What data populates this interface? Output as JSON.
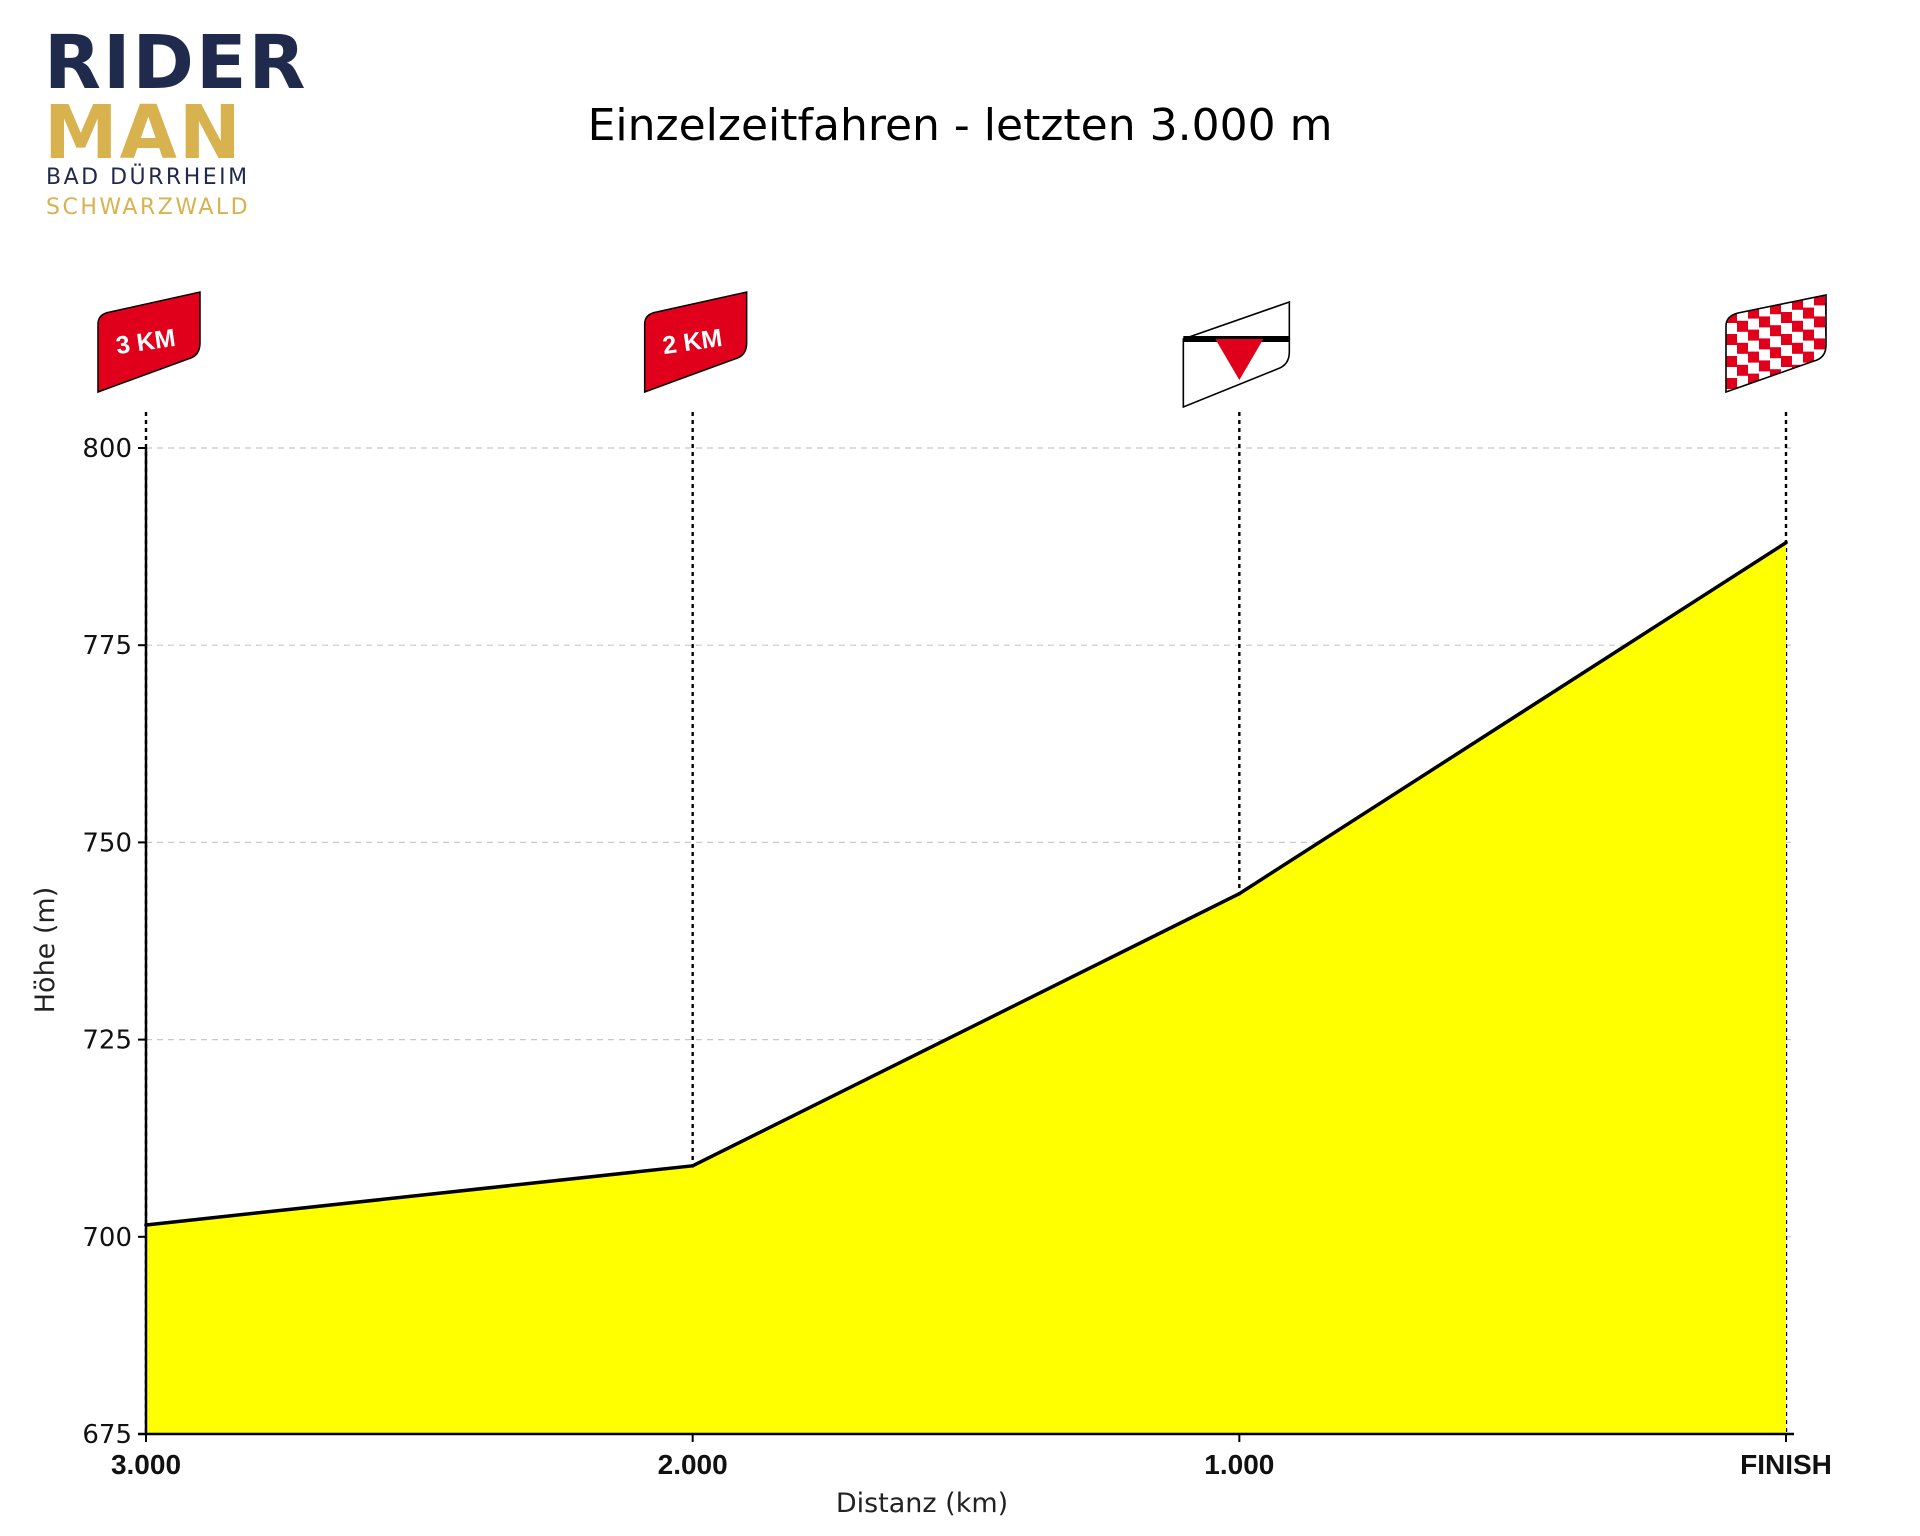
{
  "logo": {
    "line1": "RIDER",
    "line2": "MAN",
    "city": "BAD DÜRRHEIM",
    "region": "SCHWARZWALD",
    "colors": {
      "navy": "#1f2a4d",
      "gold": "#d8b24e"
    }
  },
  "chart_data": {
    "type": "area",
    "title": "Einzelzeitfahren - letzten 3.000 m",
    "xlabel": "Distanz (km)",
    "ylabel": "Höhe (m)",
    "x": [
      3.0,
      2.0,
      1.0,
      0.0
    ],
    "y": [
      701.5,
      709,
      743.5,
      788
    ],
    "xlim": [
      3.0,
      0.0
    ],
    "ylim": [
      675,
      800
    ],
    "y_ticks": [
      "675",
      "700",
      "725",
      "750",
      "775",
      "800"
    ],
    "x_ticks": [
      {
        "value": 3.0,
        "label": "3.000"
      },
      {
        "value": 2.0,
        "label": "2.000"
      },
      {
        "value": 1.0,
        "label": "1.000"
      },
      {
        "value": 0.0,
        "label": "FINISH"
      }
    ],
    "markers": [
      {
        "at": 3.0,
        "icon": "km-flag",
        "label": "3 KM"
      },
      {
        "at": 2.0,
        "icon": "km-flag",
        "label": "2 KM"
      },
      {
        "at": 1.0,
        "icon": "last-km-triangle-icon",
        "label": ""
      },
      {
        "at": 0.0,
        "icon": "checkered-finish-flag-icon",
        "label": ""
      }
    ],
    "grid": true,
    "colors": {
      "fill": "#ffff00",
      "line": "#000000",
      "flag": "#e0001b",
      "grid": "#c8c8c8"
    }
  }
}
